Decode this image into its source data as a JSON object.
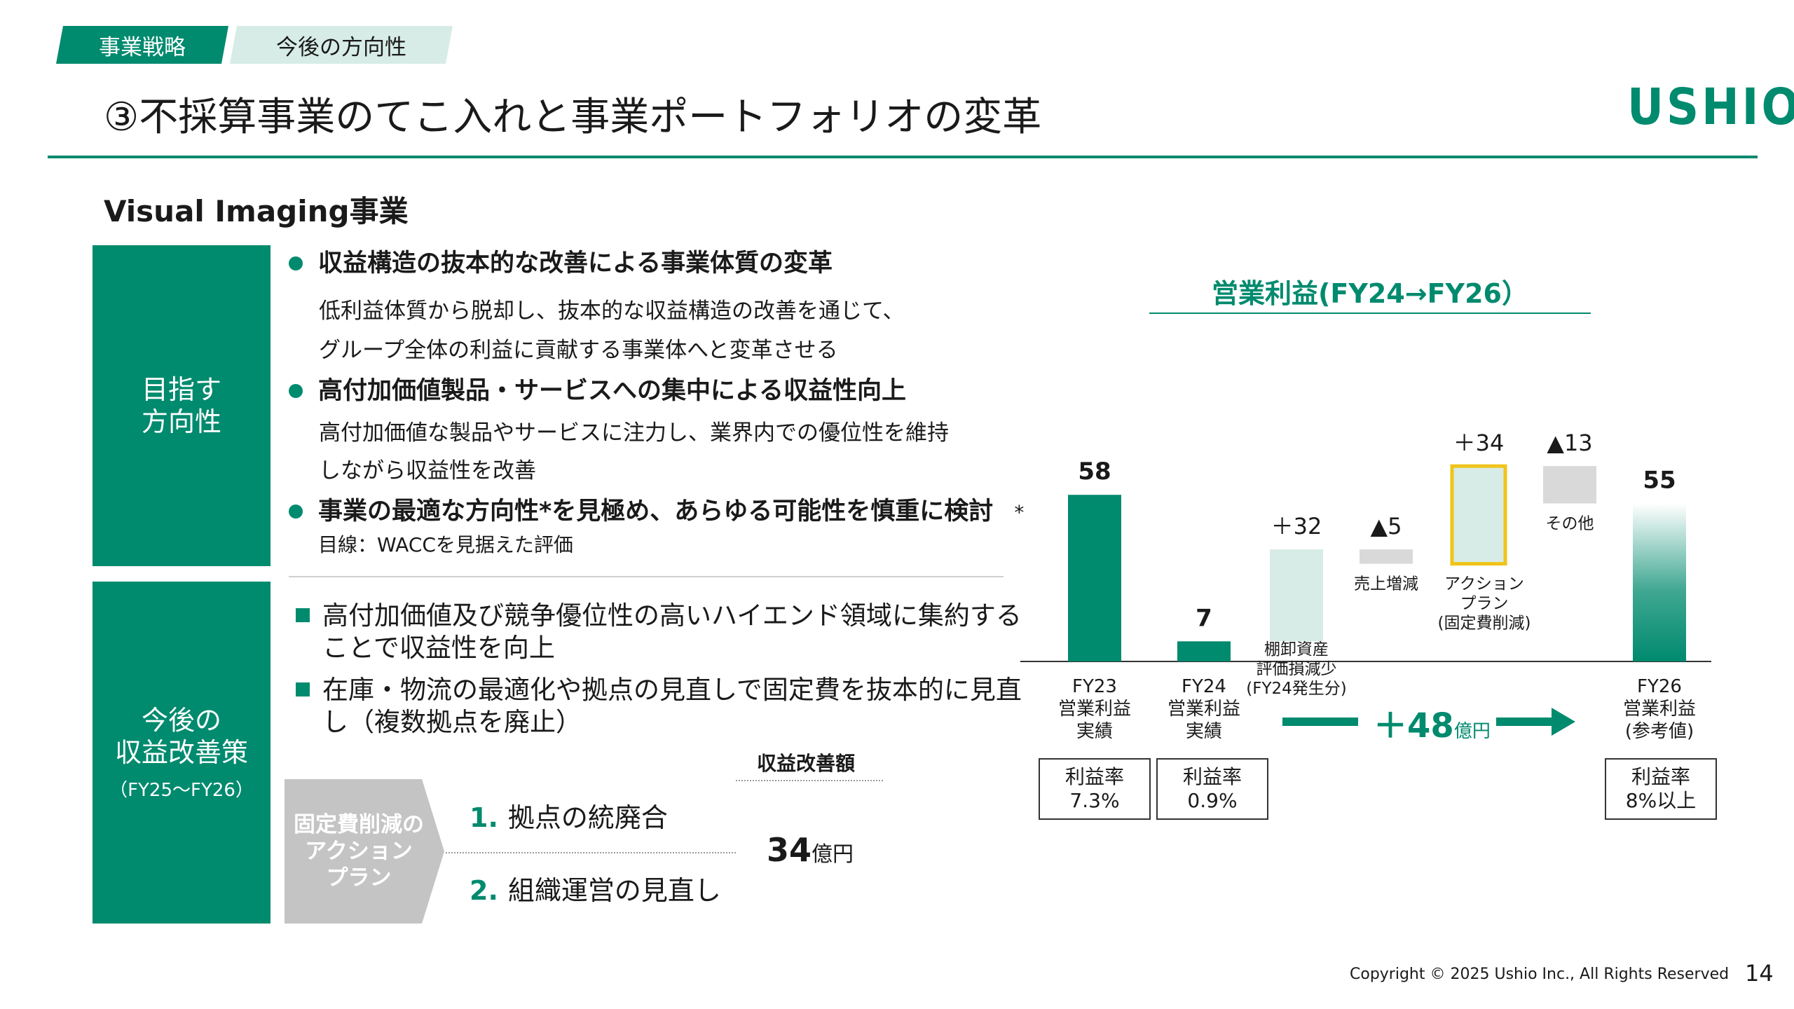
{
  "header": {
    "tabs": [
      "事業戦略",
      "今後の方向性"
    ],
    "title": "③不採算事業のてこ入れと事業ポートフォリオの変革",
    "logo": "USHIO"
  },
  "section": {
    "title": "Visual Imaging事業"
  },
  "direction": {
    "label": "目指す\n方向性",
    "bullets": [
      {
        "heading": "収益構造の抜本的な改善による事業体質の変革",
        "body": [
          "低利益体質から脱却し、抜本的な収益構造の改善を通じて、",
          "グループ全体の利益に貢献する事業体へと変革させる"
        ]
      },
      {
        "heading": "高付加価値製品・サービスへの集中による収益性向上",
        "body": [
          "高付加価値な製品やサービスに注力し、業界内での優位性を維持",
          "しながら収益性を改善"
        ]
      },
      {
        "heading": "事業の最適な方向性*を見極め、あらゆる可能性を慎重に検討",
        "note": "*目線：WACCを見据えた評価"
      }
    ]
  },
  "measures": {
    "label": "今後の\n収益改善策",
    "sublabel": "（FY25～FY26）",
    "items": [
      "高付加価値及び競争優位性の高いハイエンド領域に集約することで収益性を向上",
      "在庫・物流の最適化や拠点の見直しで固定費を抜本的に見直し（複数拠点を廃止）"
    ],
    "action_plan": {
      "label": "固定費削減の\nアクション\nプラン",
      "improvement_label": "収益改善額",
      "items": [
        {
          "num": "1.",
          "text": "拠点の統廃合"
        },
        {
          "num": "2.",
          "text": "組織運営の見直し"
        }
      ],
      "amount": "34",
      "amount_unit": "億円"
    }
  },
  "chart_data": {
    "type": "bar",
    "title": "営業利益(FY24→FY26）",
    "categories": [
      "FY23 営業利益 実績",
      "FY24 営業利益 実績",
      "棚卸資産 評価損減少 (FY24発生分)",
      "売上増減",
      "アクション プラン (固定費削減)",
      "その他",
      "FY26 営業利益 (参考値)"
    ],
    "bars": [
      {
        "key": "fy23",
        "value": 58,
        "label": "58",
        "kind": "total",
        "category_lines": [
          "FY23",
          "営業利益",
          "実績"
        ]
      },
      {
        "key": "fy24",
        "value": 7,
        "label": "7",
        "kind": "total",
        "category_lines": [
          "FY24",
          "営業利益",
          "実績"
        ]
      },
      {
        "key": "inventory",
        "value": 32,
        "label": "＋32",
        "kind": "increase",
        "category_lines": [
          "棚卸資産",
          "評価損減少",
          "(FY24発生分)"
        ]
      },
      {
        "key": "sales",
        "value": -5,
        "label": "▲5",
        "kind": "decrease",
        "category_lines": [
          "売上増減"
        ]
      },
      {
        "key": "action",
        "value": 34,
        "label": "＋34",
        "kind": "highlight",
        "category_lines": [
          "アクション",
          "プラン",
          "(固定費削減)"
        ]
      },
      {
        "key": "other",
        "value": -13,
        "label": "▲13",
        "kind": "decrease",
        "category_lines": [
          "その他"
        ]
      },
      {
        "key": "fy26",
        "value": 55,
        "label": "55",
        "kind": "target",
        "category_lines": [
          "FY26",
          "営業利益",
          "(参考値)"
        ]
      }
    ],
    "increase_label": "＋48",
    "increase_unit": "億円",
    "margins": [
      {
        "label": "利益率",
        "value": "7.3%"
      },
      {
        "label": "利益率",
        "value": "0.9%"
      },
      {
        "label": "利益率",
        "value": "8%以上"
      }
    ],
    "colors": {
      "total": "#008a6e",
      "increase": "#d7ece6",
      "decrease": "#d9d9d9",
      "highlight_border": "#f0c419",
      "highlight_fill": "#d7ece6"
    }
  },
  "footer": {
    "copyright": "Copyright © 2025 Ushio Inc., All Rights Reserved",
    "page": "14"
  }
}
